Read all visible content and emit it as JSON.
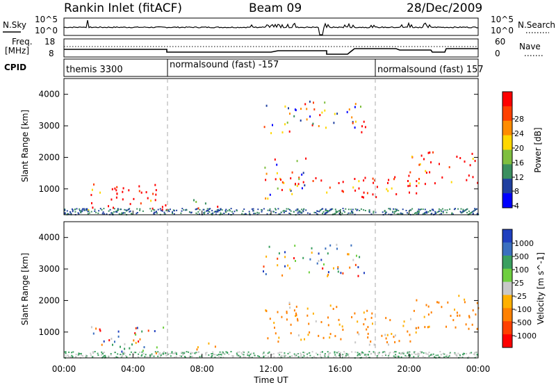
{
  "header": {
    "station": "Rankin Inlet (fitACF)",
    "beam": "Beam 09",
    "date": "28/Dec/2009"
  },
  "noise_panel": {
    "left_label": "N.Sky",
    "right_label": "N.Search",
    "left_ticks": [
      "10^5",
      "10^0"
    ],
    "right_ticks": [
      "10^5",
      "10^0"
    ]
  },
  "freq_panel": {
    "left_label_1": "Freq.",
    "left_label_2": "[MHz]",
    "right_label": "Nave",
    "left_ticks": [
      "18",
      "8"
    ],
    "right_ticks": [
      "60",
      "0"
    ]
  },
  "cpid": {
    "label": "CPID",
    "segments": [
      {
        "text": "themis 3300",
        "start_hour": 0
      },
      {
        "text": "normalsound (fast) -157",
        "start_hour": 6
      },
      {
        "text": "normalsound (fast) 157",
        "start_hour": 18
      }
    ]
  },
  "x_axis": {
    "label": "Time UT",
    "ticks": [
      "00:00",
      "04:00",
      "08:00",
      "12:00",
      "16:00",
      "20:00",
      "00:00"
    ],
    "range_hours": [
      0,
      24
    ]
  },
  "power_colorbar": {
    "label": "Power [dB]",
    "ticks": [
      "28",
      "24",
      "20",
      "16",
      "12",
      "8",
      "4"
    ],
    "colors": [
      "#ff0000",
      "#ff4000",
      "#ff8c00",
      "#ffd700",
      "#7fbf3f",
      "#3a8f5f",
      "#1f3f9f",
      "#0000ff"
    ]
  },
  "velocity_colorbar": {
    "label": "Velocity [m s^-1]",
    "ticks": [
      "1000",
      "500",
      "100",
      "25",
      "-25",
      "-100",
      "-500",
      "-1000"
    ],
    "colors": [
      "#1f3fbf",
      "#3a6fbf",
      "#3a9f5f",
      "#6fcf3f",
      "#c8c8c8",
      "#ffb000",
      "#ff8000",
      "#ff4000",
      "#ff0000"
    ]
  },
  "chart_data": [
    {
      "type": "heatmap",
      "title": "Power",
      "xlabel": "Time UT",
      "ylabel": "Slant Range [km]",
      "ylim": [
        180,
        4500
      ],
      "yticks": [
        1000,
        2000,
        3000,
        4000
      ],
      "xlim": [
        0,
        24
      ],
      "colorbar_label": "Power [dB]",
      "colorbar_range": [
        0,
        30
      ],
      "regions": [
        {
          "t0": 1.2,
          "t1": 6.0,
          "r0": 300,
          "r1": 1200,
          "level": "mixed low/high"
        },
        {
          "t0": 7.0,
          "t1": 9.0,
          "r0": 400,
          "r1": 700,
          "level": "mixed"
        },
        {
          "t0": 11.6,
          "t1": 14.0,
          "r0": 700,
          "r1": 2000,
          "level": "mixed"
        },
        {
          "t0": 13.0,
          "t1": 18.0,
          "r0": 900,
          "r1": 1400,
          "level": "high (24-28 dB)"
        },
        {
          "t0": 17.0,
          "t1": 20.5,
          "r0": 600,
          "r1": 1500,
          "level": "high (28 dB)"
        },
        {
          "t0": 20.0,
          "t1": 24.0,
          "r0": 1100,
          "r1": 2200,
          "level": "high/mixed"
        },
        {
          "t0": 11.5,
          "t1": 17.5,
          "r0": 2800,
          "r1": 3800,
          "level": "sparse mixed"
        }
      ]
    },
    {
      "type": "heatmap",
      "title": "Velocity",
      "xlabel": "Time UT",
      "ylabel": "Slant Range [km]",
      "ylim": [
        180,
        4500
      ],
      "yticks": [
        1000,
        2000,
        3000,
        4000
      ],
      "xlim": [
        0,
        24
      ],
      "colorbar_label": "Velocity [m s^-1]",
      "colorbar_range": [
        -1000,
        1000
      ],
      "regions": [
        {
          "t0": 1.2,
          "t1": 6.0,
          "r0": 300,
          "r1": 1200,
          "level": "mixed positive/negative"
        },
        {
          "t0": 7.0,
          "t1": 9.0,
          "r0": 400,
          "r1": 700,
          "level": "-100 to -500"
        },
        {
          "t0": 11.6,
          "t1": 18.0,
          "r0": 700,
          "r1": 2000,
          "level": "-100 to -500"
        },
        {
          "t0": 17.0,
          "t1": 20.5,
          "r0": 600,
          "r1": 1500,
          "level": "-100 to -500"
        },
        {
          "t0": 20.0,
          "t1": 24.0,
          "r0": 1100,
          "r1": 2200,
          "level": "-500"
        },
        {
          "t0": 11.5,
          "t1": 17.5,
          "r0": 2800,
          "r1": 3800,
          "level": "sparse mixed"
        }
      ]
    }
  ]
}
